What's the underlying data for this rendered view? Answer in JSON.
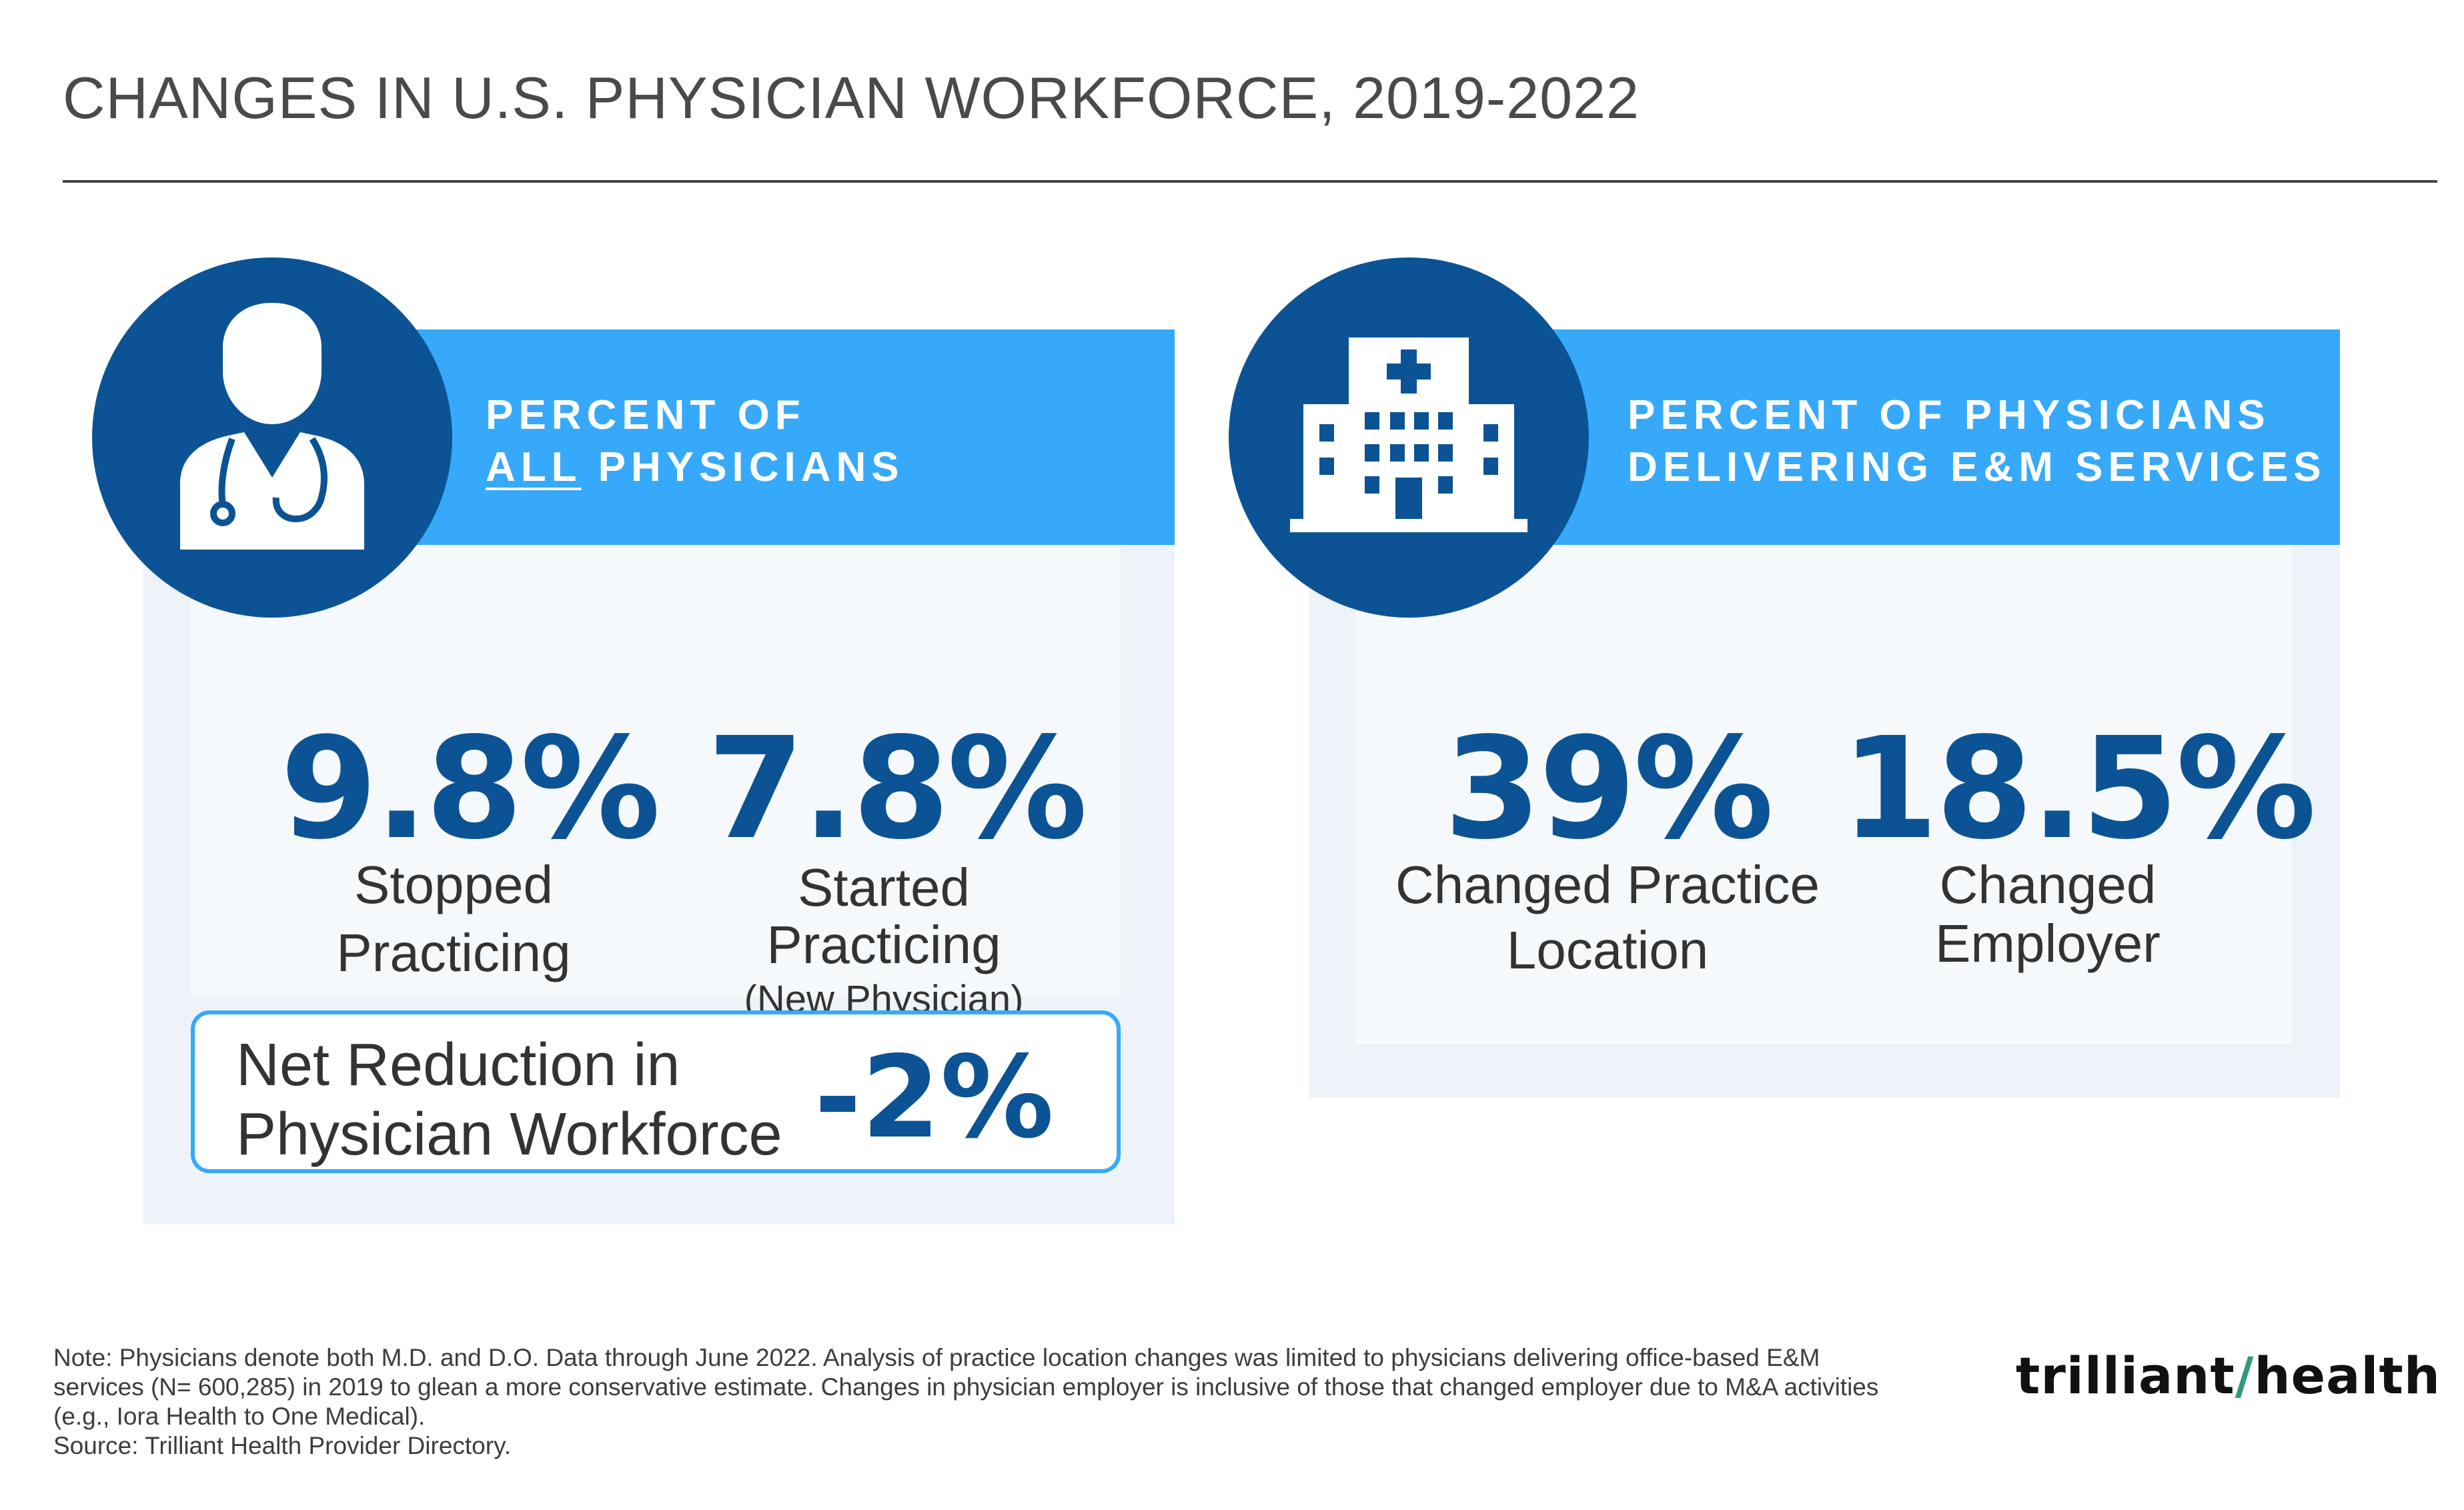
{
  "title": "CHANGES IN U.S. PHYSICIAN WORKFORCE, 2019-2022",
  "left_panel": {
    "icon": "doctor-icon",
    "banner_line1": "PERCENT OF",
    "banner_line2_underlined": "ALL",
    "banner_line2_rest": " PHYSICIANS",
    "stats": [
      {
        "value": "9.8%",
        "label_line1": "Stopped",
        "label_line2": "Practicing",
        "sublabel": ""
      },
      {
        "value": "7.8%",
        "label_line1": "Started",
        "label_line2": "Practicing",
        "sublabel": "(New Physician)"
      }
    ],
    "net": {
      "label_line1": "Net Reduction in",
      "label_line2": "Physician Workforce",
      "value": "-2%"
    }
  },
  "right_panel": {
    "icon": "hospital-icon",
    "banner_line1": "PERCENT OF PHYSICIANS",
    "banner_line2": "DELIVERING E&M SERVICES",
    "stats": [
      {
        "value": "39%",
        "label_line1": "Changed Practice",
        "label_line2": "Location"
      },
      {
        "value": "18.5%",
        "label_line1": "Changed",
        "label_line2": "Employer"
      }
    ]
  },
  "footnote": {
    "line1": "Note: Physicians denote both M.D. and D.O. Data through June 2022. Analysis of practice location changes was limited to physicians delivering office-based E&M",
    "line2": "services (N= 600,285) in 2019 to glean a more conservative estimate. Changes in physician employer is inclusive of those that changed employer due to M&A activities",
    "line3": "(e.g., Iora Health to One Medical).",
    "line4": "Source: Trilliant Health Provider Directory."
  },
  "logo": {
    "part1": "trilliant",
    "part2": "health"
  },
  "colors": {
    "navy": "#0b5394",
    "sky": "#36a9fb",
    "panel": "#edf3f9"
  }
}
